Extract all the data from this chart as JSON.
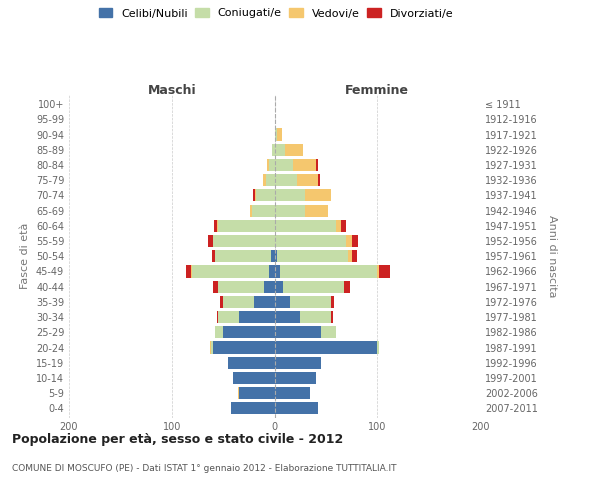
{
  "age_groups": [
    "0-4",
    "5-9",
    "10-14",
    "15-19",
    "20-24",
    "25-29",
    "30-34",
    "35-39",
    "40-44",
    "45-49",
    "50-54",
    "55-59",
    "60-64",
    "65-69",
    "70-74",
    "75-79",
    "80-84",
    "85-89",
    "90-94",
    "95-99",
    "100+"
  ],
  "birth_years": [
    "2007-2011",
    "2002-2006",
    "1997-2001",
    "1992-1996",
    "1987-1991",
    "1982-1986",
    "1977-1981",
    "1972-1976",
    "1967-1971",
    "1962-1966",
    "1957-1961",
    "1952-1956",
    "1947-1951",
    "1942-1946",
    "1937-1941",
    "1932-1936",
    "1927-1931",
    "1922-1926",
    "1917-1921",
    "1912-1916",
    "≤ 1911"
  ],
  "male": {
    "celibi": [
      42,
      35,
      40,
      45,
      60,
      50,
      35,
      20,
      10,
      5,
      3,
      0,
      0,
      0,
      0,
      0,
      0,
      0,
      0,
      0,
      0
    ],
    "coniugati": [
      0,
      0,
      0,
      0,
      2,
      8,
      20,
      30,
      45,
      75,
      55,
      60,
      55,
      22,
      18,
      8,
      5,
      2,
      0,
      0,
      0
    ],
    "vedovi": [
      0,
      1,
      0,
      0,
      1,
      0,
      0,
      0,
      0,
      1,
      0,
      0,
      1,
      2,
      1,
      3,
      2,
      0,
      0,
      0,
      0
    ],
    "divorziati": [
      0,
      0,
      0,
      0,
      0,
      0,
      1,
      3,
      5,
      5,
      3,
      5,
      3,
      0,
      2,
      0,
      0,
      0,
      0,
      0,
      0
    ]
  },
  "female": {
    "nubili": [
      42,
      35,
      40,
      45,
      100,
      45,
      25,
      15,
      8,
      5,
      2,
      0,
      0,
      0,
      0,
      0,
      0,
      0,
      0,
      0,
      0
    ],
    "coniugate": [
      0,
      0,
      0,
      0,
      2,
      15,
      30,
      40,
      60,
      95,
      70,
      70,
      60,
      30,
      30,
      22,
      18,
      10,
      2,
      0,
      0
    ],
    "vedove": [
      0,
      0,
      0,
      0,
      0,
      0,
      0,
      0,
      0,
      2,
      3,
      5,
      5,
      22,
      25,
      20,
      22,
      18,
      5,
      0,
      0
    ],
    "divorziate": [
      0,
      0,
      0,
      0,
      0,
      0,
      2,
      3,
      5,
      10,
      5,
      6,
      5,
      0,
      0,
      2,
      2,
      0,
      0,
      0,
      0
    ]
  },
  "colors": {
    "celibi": "#4472a8",
    "coniugati": "#c5dda8",
    "vedovi": "#f5c76e",
    "divorziati": "#cc2222"
  },
  "bg_color": "#ffffff",
  "grid_color": "#cccccc",
  "xlim": 200,
  "title": "Popolazione per età, sesso e stato civile - 2012",
  "subtitle": "COMUNE DI MOSCUFO (PE) - Dati ISTAT 1° gennaio 2012 - Elaborazione TUTTITALIA.IT",
  "ylabel_left": "Fasce di età",
  "ylabel_right": "Anni di nascita",
  "label_maschi": "Maschi",
  "label_femmine": "Femmine",
  "legend": [
    "Celibi/Nubili",
    "Coniugati/e",
    "Vedovi/e",
    "Divorziati/e"
  ]
}
